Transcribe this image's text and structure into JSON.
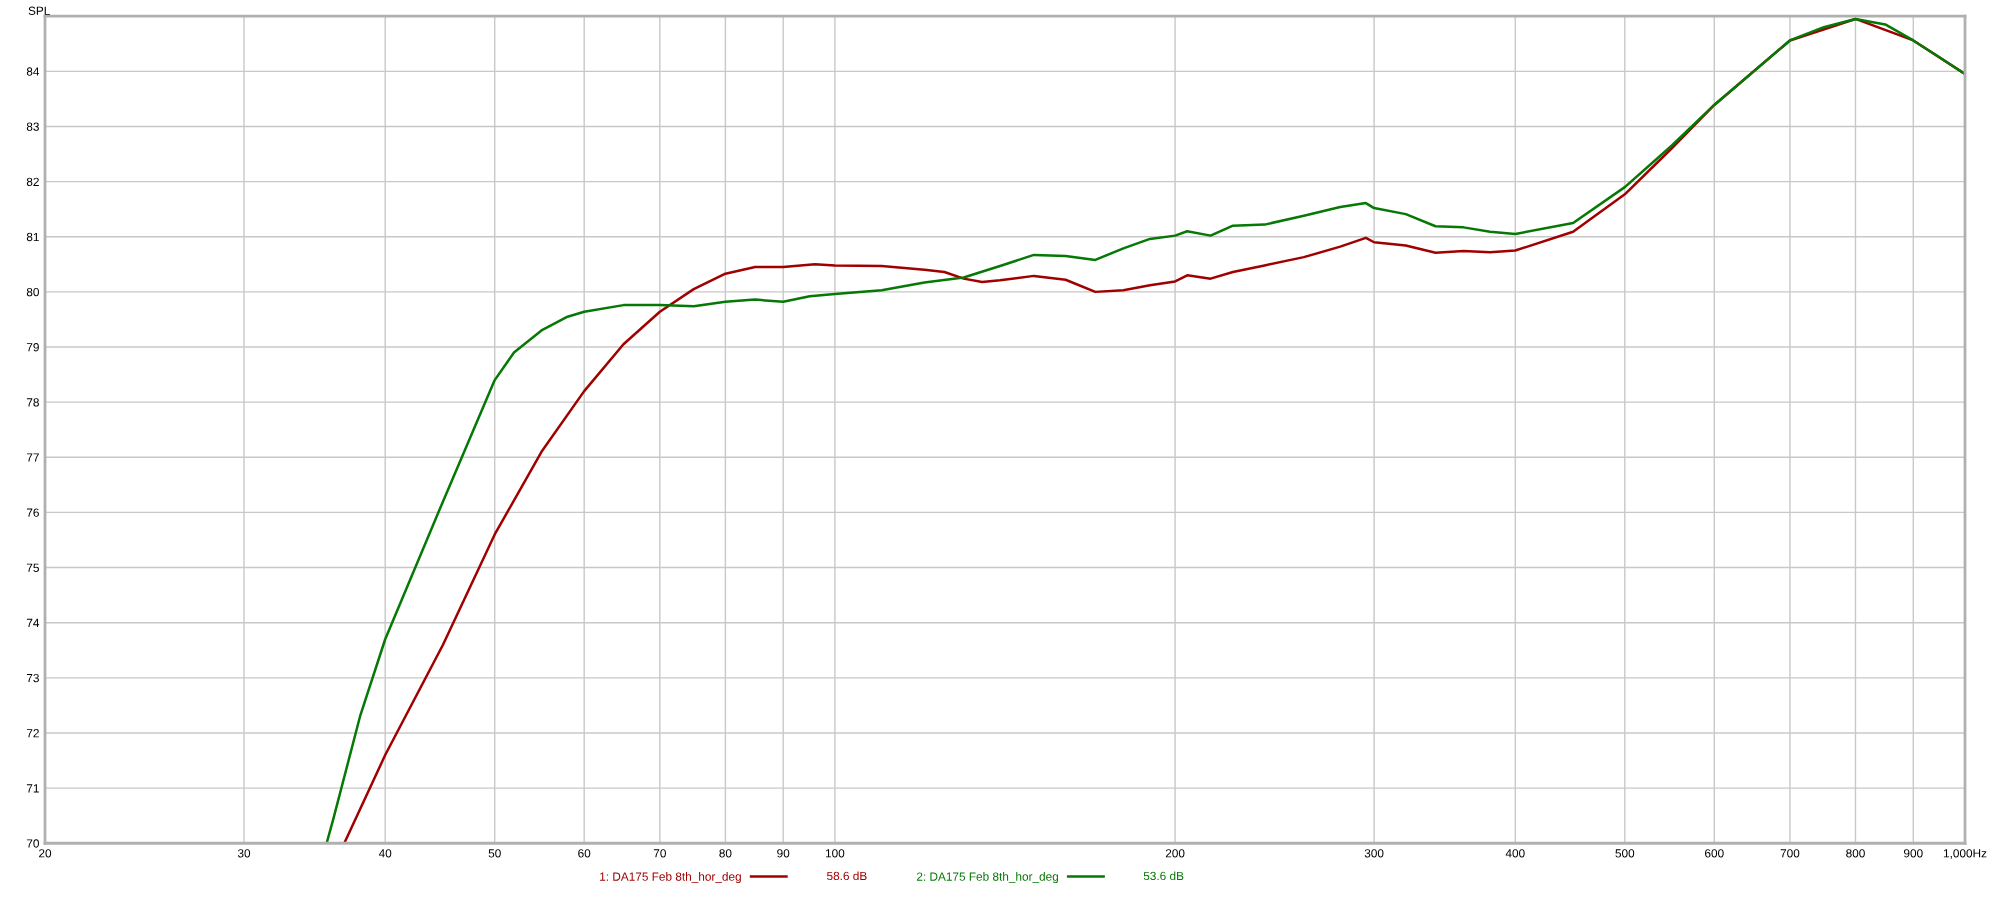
{
  "chart_data": {
    "type": "line",
    "ylabel": "SPL",
    "log": "x",
    "grid": true,
    "legend": "bottom",
    "line_style": "solid",
    "marker": "none",
    "xlim": [
      20,
      1000
    ],
    "ylim": [
      70,
      85
    ],
    "xticks": [
      20,
      30,
      40,
      50,
      60,
      70,
      80,
      90,
      100,
      200,
      300,
      400,
      500,
      600,
      700,
      800,
      900,
      {
        "value": 1000,
        "label": "1,000Hz"
      }
    ],
    "yticks": [
      70,
      71,
      72,
      73,
      74,
      75,
      76,
      77,
      78,
      79,
      80,
      81,
      82,
      83,
      84
    ],
    "annotations": [
      "58.6 dB",
      "53.6 dB"
    ],
    "series": [
      {
        "name": "1: DA175 Feb 8th_hor_deg",
        "color": "#a00000",
        "x": [
          36.8,
          40,
          45,
          50,
          55,
          60,
          65,
          70,
          75,
          80,
          85,
          90,
          96,
          100,
          110,
          120,
          125,
          130,
          135,
          140,
          150,
          160,
          170,
          180,
          190,
          200,
          205,
          215,
          225,
          240,
          260,
          280,
          295,
          300,
          320,
          340,
          360,
          380,
          400,
          450,
          500,
          550,
          600,
          700,
          800,
          900,
          1000
        ],
        "values": [
          70,
          71.6,
          73.6,
          75.6,
          77.1,
          78.2,
          79.05,
          79.64,
          80.05,
          80.33,
          80.45,
          80.45,
          80.5,
          80.48,
          80.47,
          80.4,
          80.36,
          80.24,
          80.18,
          80.21,
          80.29,
          80.22,
          80.0,
          80.03,
          80.12,
          80.19,
          80.3,
          80.24,
          80.36,
          80.48,
          80.63,
          80.82,
          80.98,
          80.9,
          80.84,
          80.71,
          80.74,
          80.72,
          80.75,
          81.09,
          81.77,
          82.6,
          83.39,
          84.56,
          84.95,
          84.56,
          83.95
        ]
      },
      {
        "name": "2: DA175 Feb 8th_hor_deg",
        "color": "#067806",
        "x": [
          35.5,
          36,
          38,
          40,
          45,
          50,
          52,
          55,
          58,
          60,
          65,
          70,
          75,
          80,
          85,
          90,
          95,
          100,
          110,
          120,
          130,
          140,
          150,
          160,
          170,
          180,
          190,
          200,
          205,
          215,
          225,
          240,
          260,
          280,
          295,
          300,
          320,
          340,
          360,
          380,
          400,
          450,
          500,
          550,
          600,
          700,
          750,
          800,
          850,
          900,
          950,
          1000
        ],
        "values": [
          70,
          70.45,
          72.3,
          73.7,
          76.2,
          78.4,
          78.9,
          79.3,
          79.55,
          79.64,
          79.76,
          79.76,
          79.74,
          79.82,
          79.86,
          79.82,
          79.92,
          79.96,
          80.03,
          80.17,
          80.26,
          80.47,
          80.67,
          80.65,
          80.58,
          80.79,
          80.96,
          81.02,
          81.1,
          81.02,
          81.2,
          81.22,
          81.38,
          81.54,
          81.61,
          81.52,
          81.41,
          81.19,
          81.17,
          81.09,
          81.05,
          81.25,
          81.9,
          82.65,
          83.39,
          84.56,
          84.8,
          84.95,
          84.85,
          84.56,
          84.25,
          83.95
        ]
      }
    ]
  }
}
